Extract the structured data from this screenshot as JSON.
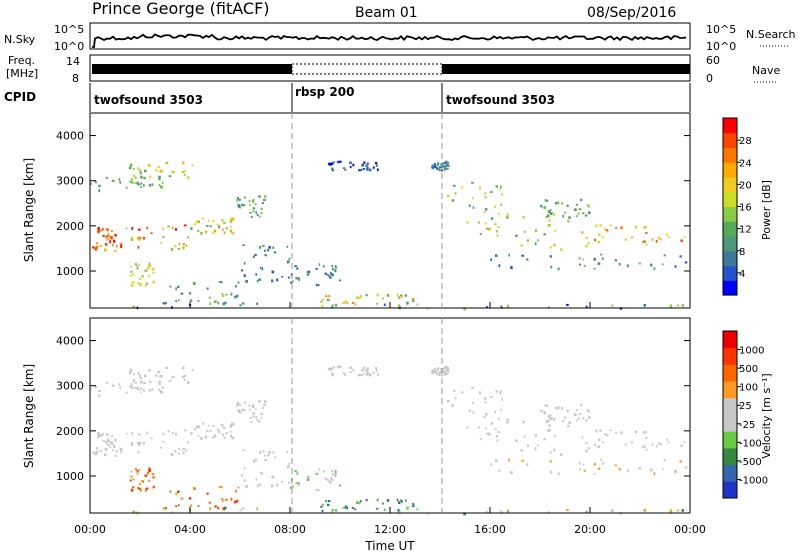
{
  "header": {
    "station": "Prince George (fitACF)",
    "beam": "Beam 01",
    "date": "08/Sep/2016"
  },
  "top_panel_labels": {
    "nsky": "N.Sky",
    "nsearch": "N.Search",
    "nsky_ticks": [
      "10^5",
      "10^0"
    ],
    "nsearch_ticks": [
      "10^5",
      "10^0"
    ],
    "freq": "Freq.",
    "freq_unit": "[MHz]",
    "freq_ticks": [
      "14",
      "8"
    ],
    "nave": "Nave",
    "nave_ticks": [
      "60",
      "0"
    ],
    "cpid": "CPID",
    "cpid_segments": [
      {
        "label": "twofsound 3503",
        "start_h": 0,
        "end_h": 8
      },
      {
        "label": "rbsp 200",
        "start_h": 8,
        "end_h": 14
      },
      {
        "label": "twofsound 3503",
        "start_h": 14,
        "end_h": 24
      }
    ]
  },
  "colorbars": {
    "power": {
      "label": "Power [dB]",
      "ticks": [
        "28",
        "24",
        "20",
        "16",
        "12",
        "8",
        "4"
      ],
      "colors": [
        "#0000ff",
        "#2255cc",
        "#3a7a9a",
        "#4a9a7a",
        "#55aa55",
        "#88cc44",
        "#ccdd22",
        "#eecc22",
        "#ffaa00",
        "#ff7700",
        "#ff4400",
        "#ff0000"
      ]
    },
    "velocity": {
      "label": "Velocity [m s⁻¹]",
      "ticks": [
        "1000",
        "500",
        "100",
        "25",
        "-25",
        "-100",
        "-500",
        "-1000"
      ],
      "colors": [
        "#2233cc",
        "#3366aa",
        "#338844",
        "#66cc44",
        "#c8c8c8",
        "#c8c8c8",
        "#ff9922",
        "#ff6600",
        "#ff3300",
        "#ee0000"
      ]
    }
  },
  "chart_data": [
    {
      "type": "heatmap",
      "name": "power",
      "ylabel": "Slant Range [km]",
      "ylim": [
        180,
        4500
      ],
      "yticks": [
        "4000",
        "3000",
        "2000",
        "1000"
      ],
      "xlim": [
        0,
        24
      ],
      "band_center_ranges_km": [
        {
          "t": [
            0,
            1
          ],
          "range": 1700
        },
        {
          "t": [
            1,
            4
          ],
          "range": 1750
        },
        {
          "t": [
            4,
            6
          ],
          "range": 2050
        },
        {
          "t": [
            6,
            7.5
          ],
          "range": 2500
        },
        {
          "t": [
            14,
            16
          ],
          "range": 2300
        },
        {
          "t": [
            16,
            20
          ],
          "range": 1400
        },
        {
          "t": [
            20,
            24
          ],
          "range": 1800
        }
      ],
      "colorbar": "power"
    },
    {
      "type": "heatmap",
      "name": "velocity",
      "ylabel": "Slant Range [km]",
      "ylim": [
        180,
        4500
      ],
      "yticks": [
        "4000",
        "3000",
        "2000",
        "1000"
      ],
      "xlim": [
        0,
        24
      ],
      "colorbar": "velocity"
    }
  ],
  "xaxis": {
    "label": "Time UT",
    "ticks": [
      "00:00",
      "04:00",
      "08:00",
      "12:00",
      "16:00",
      "20:00",
      "00:00"
    ]
  }
}
